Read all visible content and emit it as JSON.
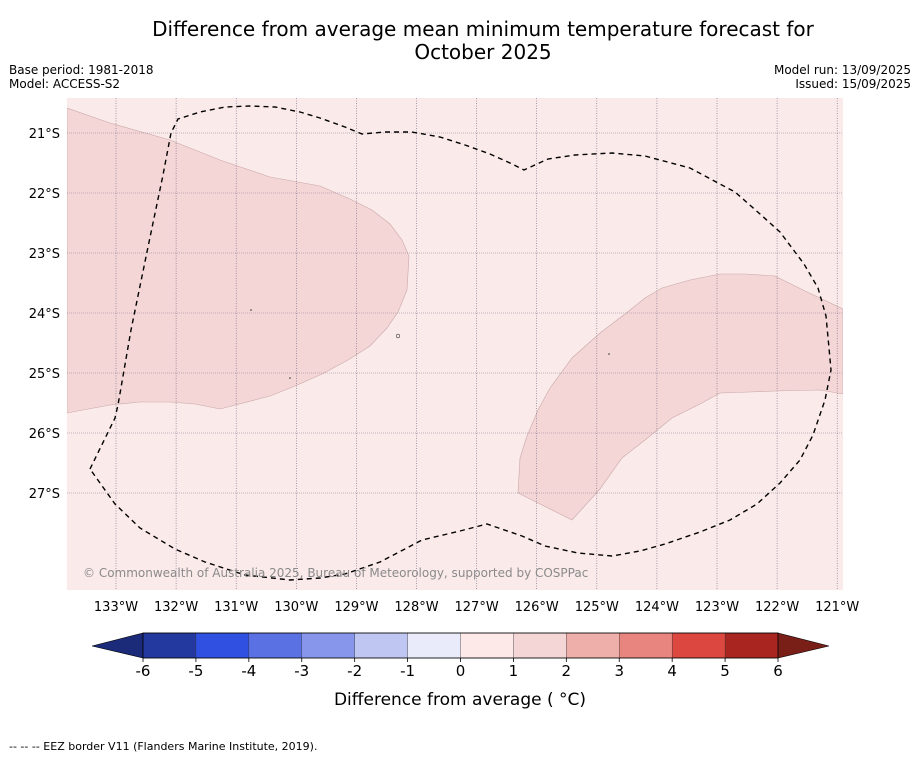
{
  "title_line1": "Difference from average mean minimum temperature forecast for",
  "title_line2": "October 2025",
  "base_period": "Base period: 1981-2018",
  "model": "Model: ACCESS-S2",
  "model_run": "Model run: 13/09/2025",
  "issued": "Issued: 15/09/2025",
  "copyright": "© Commonwealth of Australia 2025, Bureau of Meteorology, supported by COSPPac",
  "lat_labels": [
    "21°S",
    "22°S",
    "23°S",
    "24°S",
    "25°S",
    "26°S",
    "27°S"
  ],
  "lon_labels": [
    "133°W",
    "132°W",
    "131°W",
    "130°W",
    "129°W",
    "128°W",
    "127°W",
    "126°W",
    "125°W",
    "124°W",
    "123°W",
    "122°W",
    "121°W"
  ],
  "colorbar": {
    "ticks": [
      "-6",
      "-5",
      "-4",
      "-3",
      "-2",
      "-1",
      "0",
      "1",
      "2",
      "3",
      "4",
      "5",
      "6"
    ],
    "colors": [
      "#23399f",
      "#2f50e0",
      "#5a71e3",
      "#8796ea",
      "#c0c6f2",
      "#e9ebfb",
      "#fce9e8",
      "#f5d6d6",
      "#eeaeaa",
      "#e8857e",
      "#dc483f",
      "#a8261f"
    ],
    "under_color": "#1b2b7a",
    "over_color": "#7a1e18",
    "label": "Difference from average ( °C)"
  },
  "map_fill": {
    "category_0_1": "#fbeaea",
    "category_1_2": "#f4d6d6"
  },
  "footer": "--  --  -- EEZ border V11 (Flanders Marine Institute, 2019)."
}
